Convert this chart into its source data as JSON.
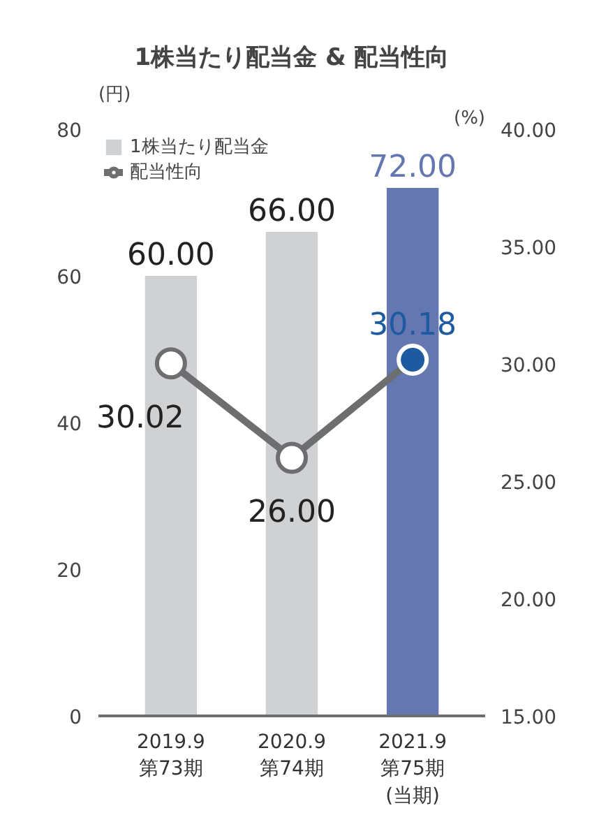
{
  "chart_data": {
    "type": "bar",
    "title": "1株当たり配当金 & 配当性向",
    "ylabel": "(円)",
    "y2label": "(%)",
    "categories": [
      "2019.9\n第73期",
      "2020.9\n第74期",
      "2021.9\n第75期\n(当期)"
    ],
    "series": [
      {
        "name": "1株当たり配当金",
        "colors": [
          "#d0d1d3",
          "#d0d1d3",
          "#6477b0"
        ],
        "color": "#6477b0",
        "values": [
          60.0,
          66.0,
          72.0
        ],
        "value_labels": [
          "60.00",
          "66.00",
          "72.00"
        ]
      },
      {
        "name": "配当性向",
        "type": "line",
        "axis": "y2",
        "color": "#6d6e70",
        "colors": [
          "#ffffff",
          "#ffffff",
          "#1d5aa0"
        ],
        "values": [
          30.02,
          26.0,
          30.18
        ],
        "value_labels": [
          "30.02",
          "26.00",
          "30.18"
        ]
      }
    ],
    "ylim": [
      0,
      80
    ],
    "yticks": [
      0,
      20,
      40,
      60,
      80
    ],
    "y2lim": [
      15,
      40
    ],
    "y2ticks": [
      {
        "value": 15,
        "label": "15.00"
      },
      {
        "value": 20,
        "label": "20.00"
      },
      {
        "value": 25,
        "label": "25.00"
      },
      {
        "value": 30,
        "label": "30.00"
      },
      {
        "value": 35,
        "label": "35.00"
      },
      {
        "value": 40,
        "label": "40.00"
      }
    ],
    "grid": false,
    "legend": "top left",
    "marker": "circle"
  }
}
